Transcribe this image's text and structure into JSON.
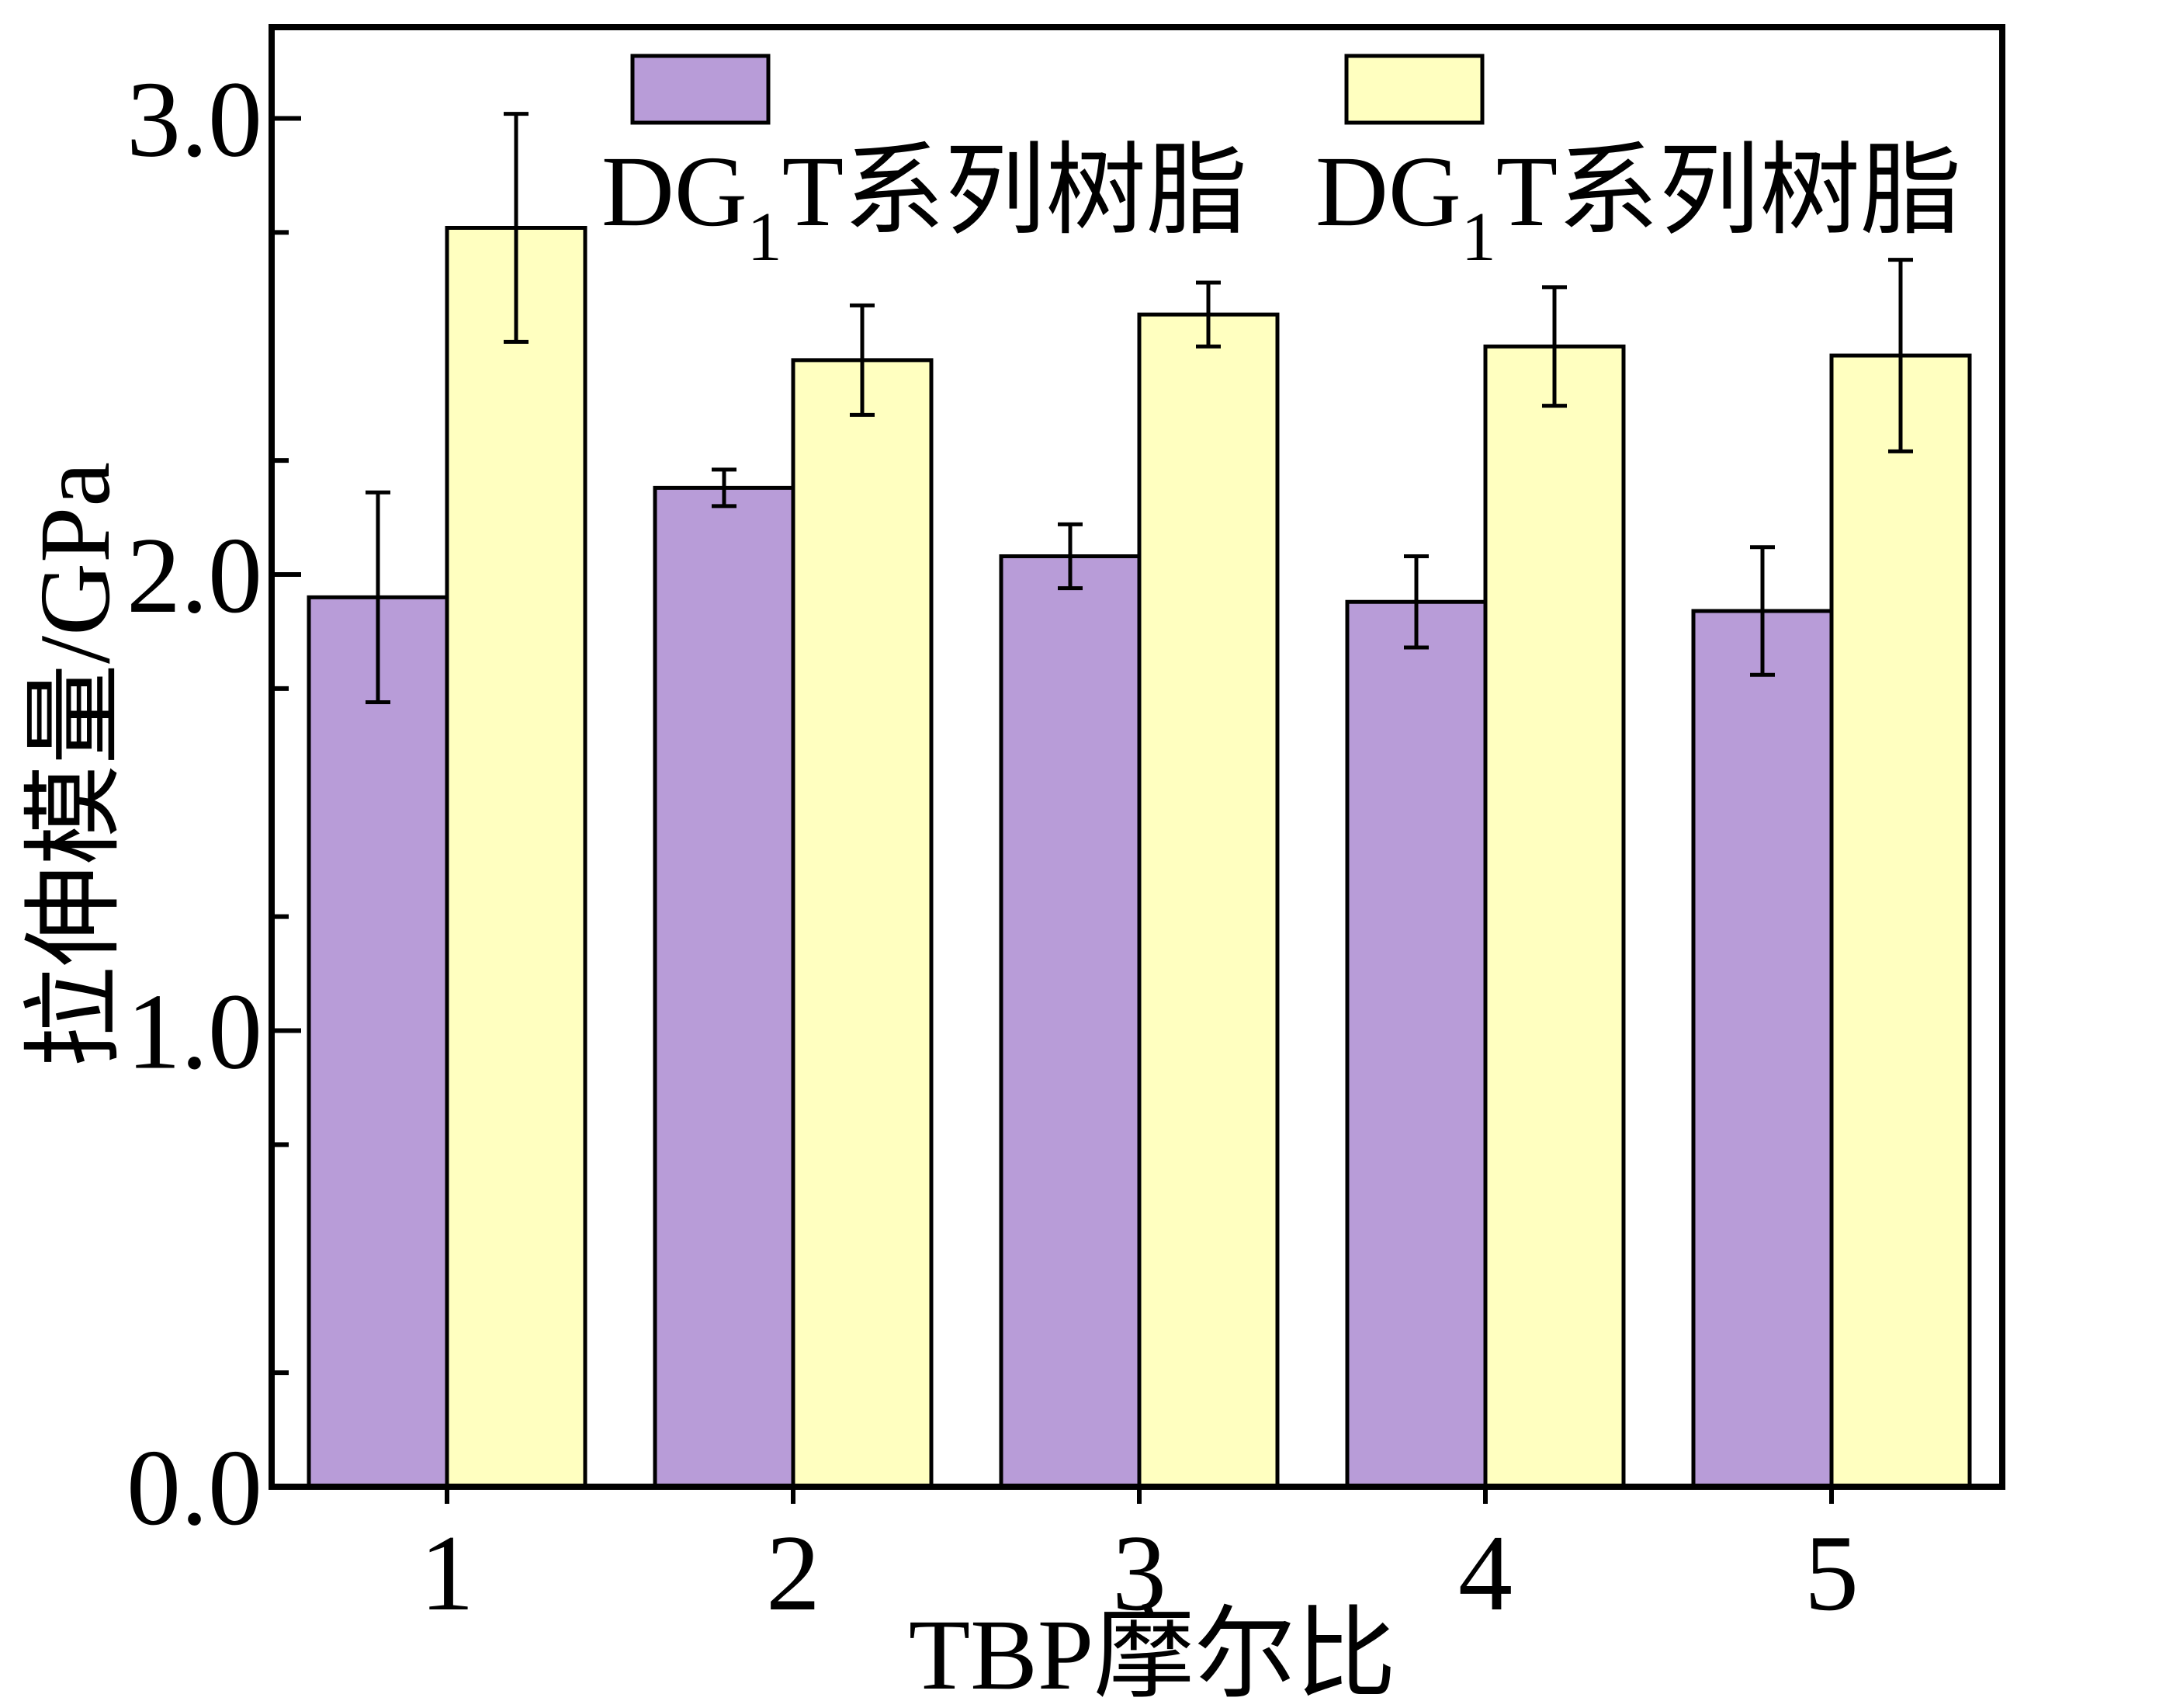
{
  "chart_data": {
    "type": "bar",
    "title": "",
    "xlabel": "TBP摩尔比",
    "ylabel": "拉伸模量/GPa",
    "categories": [
      "1",
      "2",
      "3",
      "4",
      "5"
    ],
    "ylim": [
      0,
      3.2
    ],
    "yticks": [
      "0.0",
      "1.0",
      "2.0",
      "3.0"
    ],
    "ytick_values": [
      0,
      1,
      2,
      3
    ],
    "grid": false,
    "legend_position": "top",
    "series": [
      {
        "name": "DG1T系列树脂",
        "label_main": "DG",
        "label_sub": "1",
        "label_rest": "T系列树脂",
        "color": "#b89cd8",
        "values": [
          1.95,
          2.19,
          2.04,
          1.94,
          1.92
        ],
        "errors": [
          0.23,
          0.04,
          0.07,
          0.1,
          0.14
        ]
      },
      {
        "name": "DG1T系列树脂",
        "label_main": "DG",
        "label_sub": "1",
        "label_rest": "T系列树脂",
        "color": "#ffffc0",
        "values": [
          2.76,
          2.47,
          2.57,
          2.5,
          2.48
        ],
        "errors": [
          0.25,
          0.12,
          0.07,
          0.13,
          0.21
        ]
      }
    ]
  }
}
